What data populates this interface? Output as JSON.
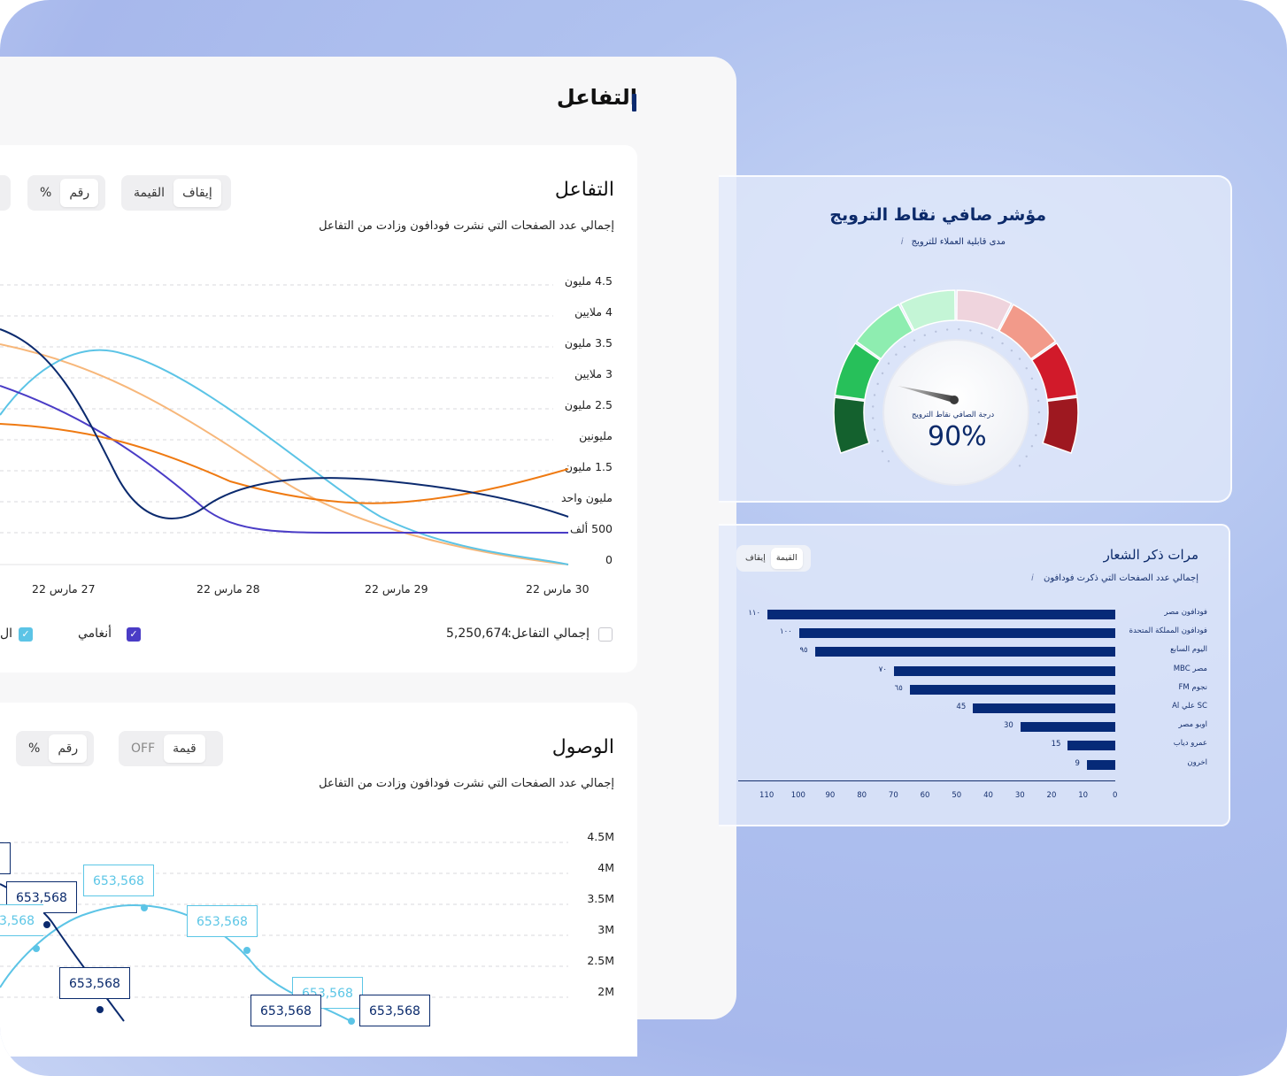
{
  "section_title": "التفاعل",
  "engagement": {
    "title": "التفاعل",
    "subtitle": "إجمالي عدد الصفحات التي نشرت فودافون وزادت من التفاعل",
    "toggle_off": "إيقاف",
    "toggle_value": "القيمة",
    "toggle_number": "رقم",
    "toggle_percent": "%",
    "y_ticks": [
      "4.5 مليون",
      "4 ملايين",
      "3.5 مليون",
      "3 ملايين",
      "2.5 مليون",
      "مليونين",
      "1.5 مليون",
      "مليون واحد",
      "500 ألف",
      "0"
    ],
    "x_ticks": [
      "30 مارس 22",
      "29 مارس 22",
      "28 مارس 22",
      "27 مارس 22"
    ],
    "total_label": "إجمالي التفاعل:",
    "total_value": "5,250,674",
    "legend_anghami": "أنغامي",
    "legend_partial": "ال",
    "colors": {
      "navy": "#0b2a6e",
      "sky": "#5cc4e6",
      "peach": "#f7b77a",
      "orange": "#ef7a12",
      "violet": "#4a3cc6"
    }
  },
  "reach": {
    "title": "الوصول",
    "subtitle": "إجمالي عدد الصفحات التي نشرت فودافون وزادت من التفاعل",
    "toggle_value": "قيمة",
    "toggle_off": "OFF",
    "toggle_number": "رقم",
    "toggle_percent": "%",
    "y_ticks": [
      "4.5M",
      "4M",
      "3.5M",
      "3M",
      "2.5M",
      "2M"
    ],
    "tooltips": {
      "t1": "653,568",
      "t2": "653,568",
      "t3": "653,568",
      "t4": "653,568",
      "t5": "653,568",
      "t6": "653,568",
      "t7": "653,568",
      "t8": "3,568"
    }
  },
  "nps": {
    "title": "مؤشر صافي نقاط الترويج",
    "subtitle": "مدى قابلية العملاء للترويج",
    "info_icon": "i",
    "score_label": "درجة الصافي نقاط الترويج",
    "score": "90%",
    "score_value": 90
  },
  "mentions": {
    "title": "مرات ذكر الشعار",
    "subtitle": "إجمالي عدد الصفحات التي ذكرت فودافون",
    "info_icon": "i",
    "toggle_value": "القيمة",
    "toggle_off": "إيقاف",
    "chart_data": {
      "type": "bar",
      "orientation": "horizontal",
      "categories": [
        "فودافون مصر",
        "فودافون المملكة المتحدة",
        "اليوم السابع",
        "مصر MBC",
        "نجوم FM",
        "SC علي Al",
        "اوبو مصر",
        "عمرو دياب",
        "اخرون"
      ],
      "values": [
        110,
        100,
        95,
        70,
        65,
        45,
        30,
        15,
        9
      ],
      "value_labels": [
        "١١٠",
        "١٠٠",
        "٩٥",
        "٧٠",
        "٦٥",
        "45",
        "30",
        "15",
        "9"
      ],
      "x_ticks": [
        "110",
        "100",
        "90",
        "80",
        "70",
        "60",
        "50",
        "40",
        "30",
        "20",
        "10",
        "0"
      ],
      "xlim": [
        0,
        117
      ]
    }
  }
}
